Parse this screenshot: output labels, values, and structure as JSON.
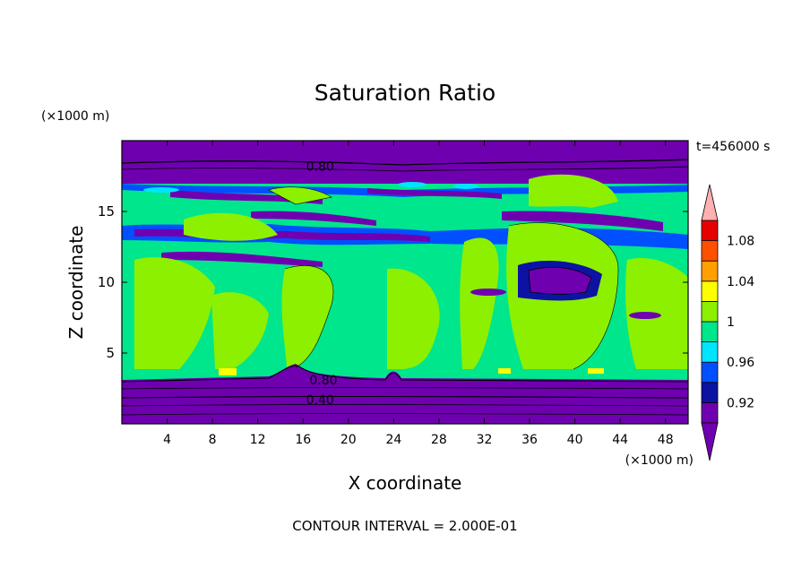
{
  "chart_data": {
    "type": "heatmap",
    "title": "Saturation Ratio",
    "xlabel": "X coordinate",
    "ylabel": "Z coordinate",
    "x_unit": "(×1000 m)",
    "y_unit": "(×1000 m)",
    "time_label": "t=456000 s",
    "footer": "CONTOUR INTERVAL = 2.000E-01",
    "xlim": [
      0,
      50
    ],
    "ylim": [
      0,
      20
    ],
    "x_ticks": [
      4,
      8,
      12,
      16,
      20,
      24,
      28,
      32,
      36,
      40,
      44,
      48
    ],
    "y_ticks": [
      5,
      10,
      15
    ],
    "colorbar": {
      "levels": [
        0.9,
        0.92,
        0.94,
        0.96,
        0.98,
        1.0,
        1.02,
        1.04,
        1.06,
        1.08,
        1.1
      ],
      "tick_labels": [
        "0.92",
        "0.96",
        "1",
        "1.04",
        "1.08"
      ],
      "tick_values": [
        0.92,
        0.96,
        1.0,
        1.04,
        1.08
      ],
      "colors": [
        "#6f00b0",
        "#0c13a3",
        "#0050ff",
        "#00e5ff",
        "#00e68c",
        "#8cf000",
        "#ffff00",
        "#ffa000",
        "#ff5000",
        "#e60000"
      ],
      "under_color": "#6f00b0",
      "over_color": "#ffb0b0"
    },
    "contour_labels": [
      {
        "text": "0.80",
        "x": 17.5,
        "y": 18.2
      },
      {
        "text": "0.80",
        "x": 17.8,
        "y": 3.1
      },
      {
        "text": "0.40",
        "x": 17.5,
        "y": 1.7
      }
    ]
  }
}
